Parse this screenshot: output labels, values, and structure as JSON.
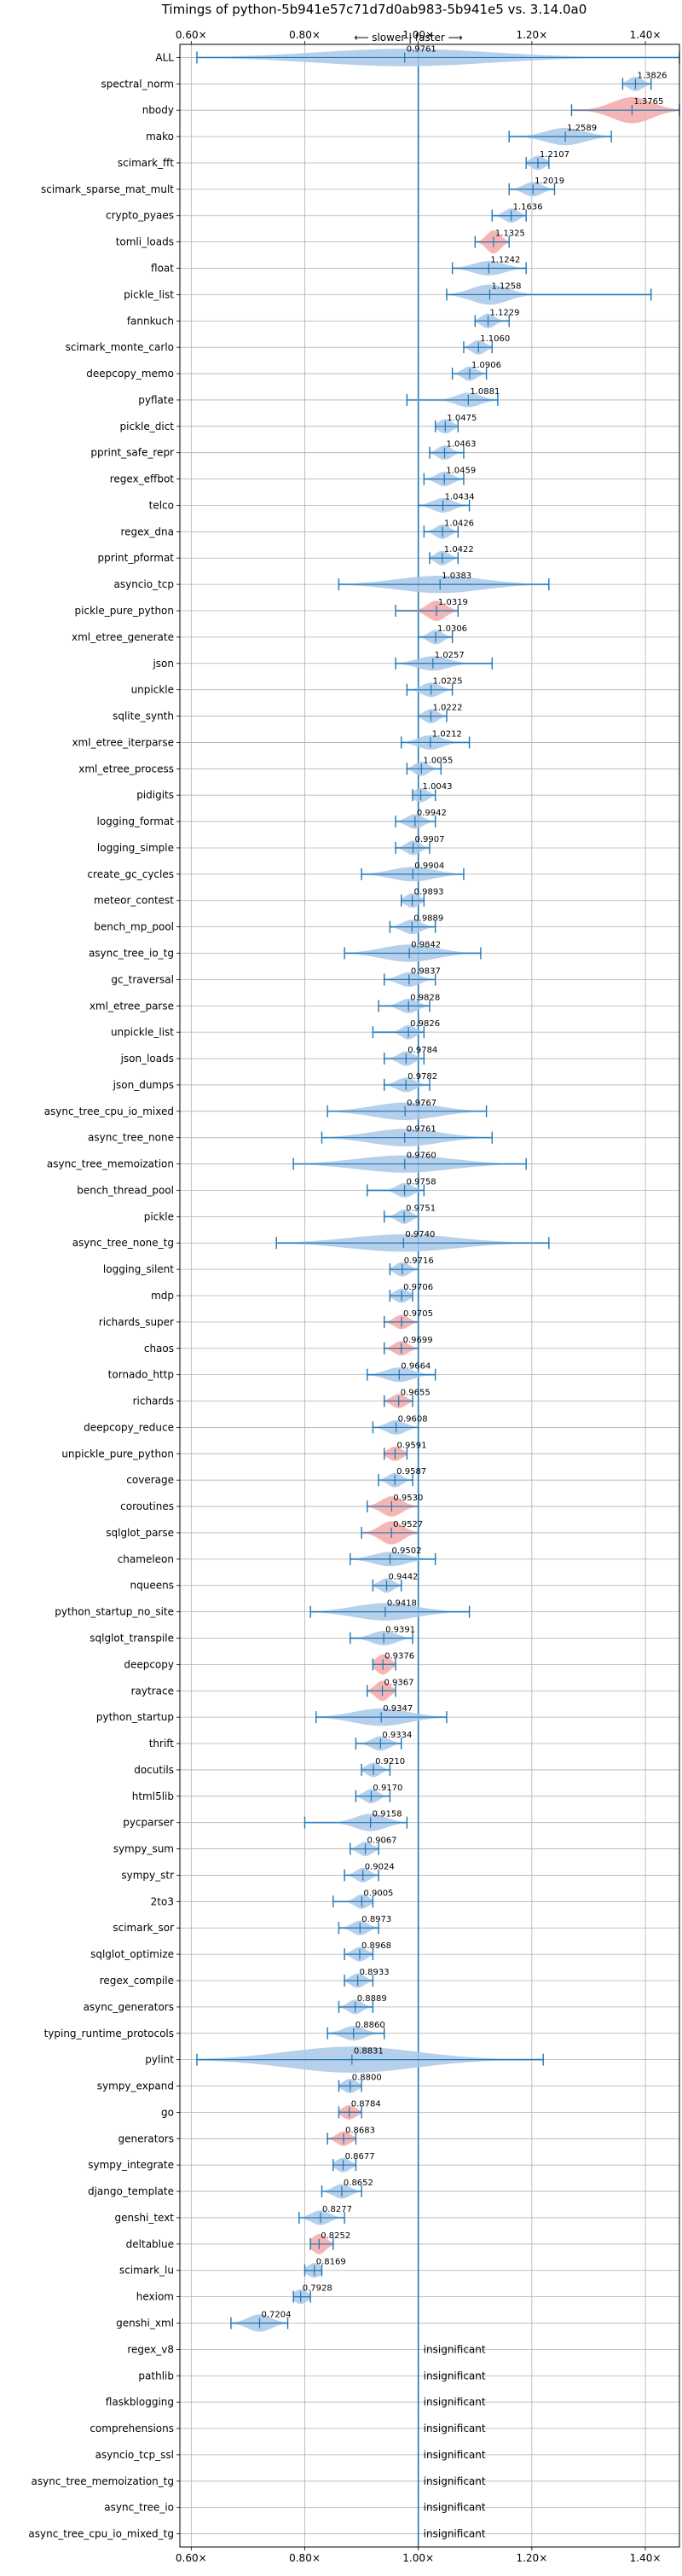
{
  "chart_data": {
    "type": "violin",
    "title": "Timings of python-5b941e57c71d7d0ab983-5b941e5 vs. 3.14.0a0",
    "subtitle": "⟵ slower | faster ⟶",
    "xlim": [
      0.58,
      1.46
    ],
    "xticks": [
      0.6,
      0.8,
      1.0,
      1.2,
      1.4
    ],
    "xtick_labels": [
      "0.60×",
      "0.80×",
      "1.00×",
      "1.20×",
      "1.40×"
    ],
    "reference_x": 1.0,
    "grid": true,
    "colors": {
      "faster": "#a9c8e8",
      "slower_highlight": "#f4a8a8",
      "stat_lines": "#1f77b4",
      "reference_line": "#1f77b4"
    },
    "insignificant_label": "insignificant",
    "benchmarks": [
      {
        "name": "ALL",
        "value": 0.9761,
        "lo": 0.61,
        "hi": 1.46,
        "w": 0.6,
        "red": false
      },
      {
        "name": "spectral_norm",
        "value": 1.3826,
        "lo": 1.36,
        "hi": 1.41,
        "w": 0.5,
        "red": false
      },
      {
        "name": "nbody",
        "value": 1.3765,
        "lo": 1.27,
        "hi": 1.46,
        "w": 0.9,
        "red": true
      },
      {
        "name": "mako",
        "value": 1.2589,
        "lo": 1.16,
        "hi": 1.34,
        "w": 0.6,
        "red": false
      },
      {
        "name": "scimark_fft",
        "value": 1.2107,
        "lo": 1.19,
        "hi": 1.23,
        "w": 0.5,
        "red": false
      },
      {
        "name": "scimark_sparse_mat_mult",
        "value": 1.2019,
        "lo": 1.16,
        "hi": 1.24,
        "w": 0.5,
        "red": false
      },
      {
        "name": "crypto_pyaes",
        "value": 1.1636,
        "lo": 1.13,
        "hi": 1.19,
        "w": 0.5,
        "red": false
      },
      {
        "name": "tomli_loads",
        "value": 1.1325,
        "lo": 1.1,
        "hi": 1.16,
        "w": 0.8,
        "red": true
      },
      {
        "name": "float",
        "value": 1.1242,
        "lo": 1.06,
        "hi": 1.19,
        "w": 0.5,
        "red": false
      },
      {
        "name": "pickle_list",
        "value": 1.1258,
        "lo": 1.05,
        "hi": 1.41,
        "w": 0.7,
        "red": false
      },
      {
        "name": "fannkuch",
        "value": 1.1229,
        "lo": 1.1,
        "hi": 1.16,
        "w": 0.5,
        "red": false
      },
      {
        "name": "scimark_monte_carlo",
        "value": 1.106,
        "lo": 1.08,
        "hi": 1.13,
        "w": 0.5,
        "red": false
      },
      {
        "name": "deepcopy_memo",
        "value": 1.0906,
        "lo": 1.06,
        "hi": 1.12,
        "w": 0.5,
        "red": false
      },
      {
        "name": "pyflate",
        "value": 1.0881,
        "lo": 0.98,
        "hi": 1.14,
        "w": 0.5,
        "red": false
      },
      {
        "name": "pickle_dict",
        "value": 1.0475,
        "lo": 1.03,
        "hi": 1.07,
        "w": 0.5,
        "red": false
      },
      {
        "name": "pprint_safe_repr",
        "value": 1.0463,
        "lo": 1.02,
        "hi": 1.08,
        "w": 0.5,
        "red": false
      },
      {
        "name": "regex_effbot",
        "value": 1.0459,
        "lo": 1.01,
        "hi": 1.08,
        "w": 0.5,
        "red": false
      },
      {
        "name": "telco",
        "value": 1.0434,
        "lo": 1.0,
        "hi": 1.09,
        "w": 0.5,
        "red": false
      },
      {
        "name": "regex_dna",
        "value": 1.0426,
        "lo": 1.01,
        "hi": 1.07,
        "w": 0.5,
        "red": false
      },
      {
        "name": "pprint_pformat",
        "value": 1.0422,
        "lo": 1.02,
        "hi": 1.07,
        "w": 0.5,
        "red": false
      },
      {
        "name": "asyncio_tcp",
        "value": 1.0383,
        "lo": 0.86,
        "hi": 1.23,
        "w": 0.6,
        "red": false
      },
      {
        "name": "pickle_pure_python",
        "value": 1.0319,
        "lo": 0.96,
        "hi": 1.07,
        "w": 0.7,
        "red": true
      },
      {
        "name": "xml_etree_generate",
        "value": 1.0306,
        "lo": 1.0,
        "hi": 1.06,
        "w": 0.5,
        "red": false
      },
      {
        "name": "json",
        "value": 1.0257,
        "lo": 0.96,
        "hi": 1.13,
        "w": 0.5,
        "red": false
      },
      {
        "name": "unpickle",
        "value": 1.0225,
        "lo": 0.98,
        "hi": 1.06,
        "w": 0.5,
        "red": false
      },
      {
        "name": "sqlite_synth",
        "value": 1.0222,
        "lo": 1.0,
        "hi": 1.05,
        "w": 0.5,
        "red": false
      },
      {
        "name": "xml_etree_iterparse",
        "value": 1.0212,
        "lo": 0.97,
        "hi": 1.09,
        "w": 0.5,
        "red": false
      },
      {
        "name": "xml_etree_process",
        "value": 1.0055,
        "lo": 0.98,
        "hi": 1.04,
        "w": 0.5,
        "red": false
      },
      {
        "name": "pidigits",
        "value": 1.0043,
        "lo": 0.99,
        "hi": 1.03,
        "w": 0.5,
        "red": false
      },
      {
        "name": "logging_format",
        "value": 0.9942,
        "lo": 0.96,
        "hi": 1.03,
        "w": 0.5,
        "red": false
      },
      {
        "name": "logging_simple",
        "value": 0.9907,
        "lo": 0.96,
        "hi": 1.02,
        "w": 0.5,
        "red": false
      },
      {
        "name": "create_gc_cycles",
        "value": 0.9904,
        "lo": 0.9,
        "hi": 1.08,
        "w": 0.5,
        "red": false
      },
      {
        "name": "meteor_contest",
        "value": 0.9893,
        "lo": 0.97,
        "hi": 1.01,
        "w": 0.5,
        "red": false
      },
      {
        "name": "bench_mp_pool",
        "value": 0.9889,
        "lo": 0.95,
        "hi": 1.03,
        "w": 0.5,
        "red": false
      },
      {
        "name": "async_tree_io_tg",
        "value": 0.9842,
        "lo": 0.87,
        "hi": 1.11,
        "w": 0.6,
        "red": false
      },
      {
        "name": "gc_traversal",
        "value": 0.9837,
        "lo": 0.94,
        "hi": 1.03,
        "w": 0.5,
        "red": false
      },
      {
        "name": "xml_etree_parse",
        "value": 0.9828,
        "lo": 0.93,
        "hi": 1.02,
        "w": 0.5,
        "red": false
      },
      {
        "name": "unpickle_list",
        "value": 0.9826,
        "lo": 0.92,
        "hi": 1.01,
        "w": 0.5,
        "red": false
      },
      {
        "name": "json_loads",
        "value": 0.9784,
        "lo": 0.94,
        "hi": 1.01,
        "w": 0.5,
        "red": false
      },
      {
        "name": "json_dumps",
        "value": 0.9782,
        "lo": 0.94,
        "hi": 1.02,
        "w": 0.5,
        "red": false
      },
      {
        "name": "async_tree_cpu_io_mixed",
        "value": 0.9767,
        "lo": 0.84,
        "hi": 1.12,
        "w": 0.6,
        "red": false
      },
      {
        "name": "async_tree_none",
        "value": 0.9761,
        "lo": 0.83,
        "hi": 1.13,
        "w": 0.6,
        "red": false
      },
      {
        "name": "async_tree_memoization",
        "value": 0.976,
        "lo": 0.78,
        "hi": 1.19,
        "w": 0.6,
        "red": false
      },
      {
        "name": "bench_thread_pool",
        "value": 0.9758,
        "lo": 0.91,
        "hi": 1.01,
        "w": 0.5,
        "red": false
      },
      {
        "name": "pickle",
        "value": 0.9751,
        "lo": 0.94,
        "hi": 1.0,
        "w": 0.5,
        "red": false
      },
      {
        "name": "async_tree_none_tg",
        "value": 0.974,
        "lo": 0.75,
        "hi": 1.23,
        "w": 0.6,
        "red": false
      },
      {
        "name": "logging_silent",
        "value": 0.9716,
        "lo": 0.95,
        "hi": 1.0,
        "w": 0.5,
        "red": false
      },
      {
        "name": "mdp",
        "value": 0.9706,
        "lo": 0.95,
        "hi": 0.99,
        "w": 0.5,
        "red": false
      },
      {
        "name": "richards_super",
        "value": 0.9705,
        "lo": 0.94,
        "hi": 1.0,
        "w": 0.5,
        "red": true
      },
      {
        "name": "chaos",
        "value": 0.9699,
        "lo": 0.94,
        "hi": 1.0,
        "w": 0.5,
        "red": true
      },
      {
        "name": "tornado_http",
        "value": 0.9664,
        "lo": 0.91,
        "hi": 1.03,
        "w": 0.5,
        "red": false
      },
      {
        "name": "richards",
        "value": 0.9655,
        "lo": 0.94,
        "hi": 0.99,
        "w": 0.5,
        "red": true
      },
      {
        "name": "deepcopy_reduce",
        "value": 0.9608,
        "lo": 0.92,
        "hi": 1.0,
        "w": 0.5,
        "red": false
      },
      {
        "name": "unpickle_pure_python",
        "value": 0.9591,
        "lo": 0.94,
        "hi": 0.98,
        "w": 0.5,
        "red": true
      },
      {
        "name": "coverage",
        "value": 0.9587,
        "lo": 0.93,
        "hi": 0.99,
        "w": 0.5,
        "red": false
      },
      {
        "name": "coroutines",
        "value": 0.953,
        "lo": 0.91,
        "hi": 1.0,
        "w": 0.7,
        "red": true
      },
      {
        "name": "sqlglot_parse",
        "value": 0.9527,
        "lo": 0.9,
        "hi": 1.0,
        "w": 0.8,
        "red": true
      },
      {
        "name": "chameleon",
        "value": 0.9502,
        "lo": 0.88,
        "hi": 1.03,
        "w": 0.5,
        "red": false
      },
      {
        "name": "nqueens",
        "value": 0.9442,
        "lo": 0.92,
        "hi": 0.97,
        "w": 0.5,
        "red": false
      },
      {
        "name": "python_startup_no_site",
        "value": 0.9418,
        "lo": 0.81,
        "hi": 1.09,
        "w": 0.6,
        "red": false
      },
      {
        "name": "sqlglot_transpile",
        "value": 0.9391,
        "lo": 0.88,
        "hi": 0.99,
        "w": 0.5,
        "red": false
      },
      {
        "name": "deepcopy",
        "value": 0.9376,
        "lo": 0.92,
        "hi": 0.96,
        "w": 0.7,
        "red": true
      },
      {
        "name": "raytrace",
        "value": 0.9367,
        "lo": 0.91,
        "hi": 0.96,
        "w": 0.7,
        "red": true
      },
      {
        "name": "python_startup",
        "value": 0.9347,
        "lo": 0.82,
        "hi": 1.05,
        "w": 0.6,
        "red": false
      },
      {
        "name": "thrift",
        "value": 0.9334,
        "lo": 0.89,
        "hi": 0.97,
        "w": 0.5,
        "red": false
      },
      {
        "name": "docutils",
        "value": 0.921,
        "lo": 0.9,
        "hi": 0.95,
        "w": 0.5,
        "red": false
      },
      {
        "name": "html5lib",
        "value": 0.917,
        "lo": 0.89,
        "hi": 0.95,
        "w": 0.5,
        "red": false
      },
      {
        "name": "pycparser",
        "value": 0.9158,
        "lo": 0.8,
        "hi": 0.98,
        "w": 0.6,
        "red": false
      },
      {
        "name": "sympy_sum",
        "value": 0.9067,
        "lo": 0.88,
        "hi": 0.93,
        "w": 0.5,
        "red": false
      },
      {
        "name": "sympy_str",
        "value": 0.9024,
        "lo": 0.87,
        "hi": 0.93,
        "w": 0.5,
        "red": false
      },
      {
        "name": "2to3",
        "value": 0.9005,
        "lo": 0.85,
        "hi": 0.92,
        "w": 0.5,
        "red": false
      },
      {
        "name": "scimark_sor",
        "value": 0.8973,
        "lo": 0.86,
        "hi": 0.93,
        "w": 0.5,
        "red": false
      },
      {
        "name": "sqlglot_optimize",
        "value": 0.8968,
        "lo": 0.87,
        "hi": 0.92,
        "w": 0.5,
        "red": false
      },
      {
        "name": "regex_compile",
        "value": 0.8933,
        "lo": 0.87,
        "hi": 0.92,
        "w": 0.5,
        "red": false
      },
      {
        "name": "async_generators",
        "value": 0.8889,
        "lo": 0.86,
        "hi": 0.92,
        "w": 0.5,
        "red": false
      },
      {
        "name": "typing_runtime_protocols",
        "value": 0.886,
        "lo": 0.84,
        "hi": 0.94,
        "w": 0.5,
        "red": false
      },
      {
        "name": "pylint",
        "value": 0.8831,
        "lo": 0.61,
        "hi": 1.22,
        "w": 0.9,
        "red": false
      },
      {
        "name": "sympy_expand",
        "value": 0.88,
        "lo": 0.86,
        "hi": 0.9,
        "w": 0.5,
        "red": false
      },
      {
        "name": "go",
        "value": 0.8784,
        "lo": 0.86,
        "hi": 0.9,
        "w": 0.5,
        "red": true
      },
      {
        "name": "generators",
        "value": 0.8683,
        "lo": 0.84,
        "hi": 0.89,
        "w": 0.5,
        "red": true
      },
      {
        "name": "sympy_integrate",
        "value": 0.8677,
        "lo": 0.85,
        "hi": 0.89,
        "w": 0.5,
        "red": false
      },
      {
        "name": "django_template",
        "value": 0.8652,
        "lo": 0.83,
        "hi": 0.9,
        "w": 0.5,
        "red": false
      },
      {
        "name": "genshi_text",
        "value": 0.8277,
        "lo": 0.79,
        "hi": 0.87,
        "w": 0.5,
        "red": false
      },
      {
        "name": "deltablue",
        "value": 0.8252,
        "lo": 0.81,
        "hi": 0.85,
        "w": 0.7,
        "red": true
      },
      {
        "name": "scimark_lu",
        "value": 0.8169,
        "lo": 0.8,
        "hi": 0.83,
        "w": 0.5,
        "red": false
      },
      {
        "name": "hexiom",
        "value": 0.7928,
        "lo": 0.78,
        "hi": 0.81,
        "w": 0.5,
        "red": false
      },
      {
        "name": "genshi_xml",
        "value": 0.7204,
        "lo": 0.67,
        "hi": 0.77,
        "w": 0.6,
        "red": false
      },
      {
        "name": "regex_v8",
        "insignificant": true
      },
      {
        "name": "pathlib",
        "insignificant": true
      },
      {
        "name": "flaskblogging",
        "insignificant": true
      },
      {
        "name": "comprehensions",
        "insignificant": true
      },
      {
        "name": "asyncio_tcp_ssl",
        "insignificant": true
      },
      {
        "name": "async_tree_memoization_tg",
        "insignificant": true
      },
      {
        "name": "async_tree_io",
        "insignificant": true
      },
      {
        "name": "async_tree_cpu_io_mixed_tg",
        "insignificant": true
      }
    ]
  }
}
